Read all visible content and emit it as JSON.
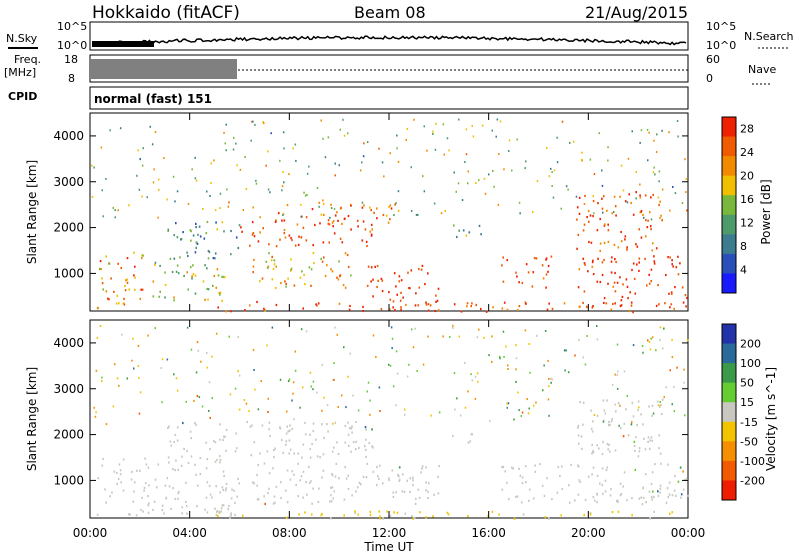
{
  "header": {
    "station": "Hokkaido (fitACF)",
    "beam": "Beam 08",
    "date": "21/Aug/2015"
  },
  "strip": {
    "nsky_label": "N.Sky",
    "nsearch_label": "N.Search",
    "freq_label": "Freq.",
    "freq_unit": "[MHz]",
    "nave_label": "Nave",
    "cpid_label": "CPID",
    "cpid_value": "normal (fast) 151",
    "noise_ticks_left": [
      "10^5",
      "10^0"
    ],
    "noise_ticks_right": [
      "10^5",
      "10^0"
    ],
    "freq_ticks": [
      "18",
      "8"
    ],
    "nave_ticks": [
      "60",
      "0"
    ]
  },
  "colors": {
    "power_scale": [
      "#1a1aff",
      "#2a4fb8",
      "#3d7b8e",
      "#4f9a6a",
      "#79b83c",
      "#f0c000",
      "#f28a00",
      "#f05a00",
      "#ee2200"
    ],
    "velocity_scale": [
      "#ee1c00",
      "#f25a00",
      "#f58f00",
      "#f2c400",
      "#c8c8c0",
      "#66cc33",
      "#3b9a4a",
      "#2a6a9a",
      "#2233aa"
    ],
    "ground_scatter": "#c8c8c0"
  },
  "chart_data": [
    {
      "type": "heatmap",
      "name": "power",
      "xlabel": "Time UT",
      "ylabel": "Slant Range [km]",
      "xlim": [
        0,
        24
      ],
      "ylim": [
        180,
        4500
      ],
      "x_ticks": [
        "00:00",
        "04:00",
        "08:00",
        "12:00",
        "16:00",
        "20:00",
        "00:00"
      ],
      "y_ticks": [
        1000,
        2000,
        3000,
        4000
      ],
      "colorbar_label": "Power [dB]",
      "colorbar_ticks": [
        4,
        8,
        12,
        16,
        20,
        24,
        28
      ],
      "clim": [
        0,
        30
      ],
      "regions": [
        {
          "t": [
            0.2,
            2.2
          ],
          "r": [
            250,
            1500
          ],
          "level": 22
        },
        {
          "t": [
            2.5,
            5.5
          ],
          "r": [
            400,
            1300
          ],
          "level": 16
        },
        {
          "t": [
            3.0,
            6.0
          ],
          "r": [
            1300,
            2200
          ],
          "level": 11
        },
        {
          "t": [
            6.0,
            11.5
          ],
          "r": [
            1600,
            2200
          ],
          "level": 27
        },
        {
          "t": [
            6.5,
            10.5
          ],
          "r": [
            700,
            1500
          ],
          "level": 20
        },
        {
          "t": [
            7.5,
            12.5
          ],
          "r": [
            2100,
            2600
          ],
          "level": 24
        },
        {
          "t": [
            11.0,
            14.0
          ],
          "r": [
            400,
            1200
          ],
          "level": 28
        },
        {
          "t": [
            14.5,
            16.0
          ],
          "r": [
            1800,
            2100
          ],
          "level": 12
        },
        {
          "t": [
            16.5,
            18.5
          ],
          "r": [
            700,
            1400
          ],
          "level": 26
        },
        {
          "t": [
            19.5,
            24.0
          ],
          "r": [
            300,
            1400
          ],
          "level": 29
        },
        {
          "t": [
            19.5,
            23.0
          ],
          "r": [
            1500,
            2800
          ],
          "level": 26
        },
        {
          "t": [
            5.0,
            24.0
          ],
          "r": [
            180,
            400
          ],
          "level": 27
        }
      ]
    },
    {
      "type": "heatmap",
      "name": "velocity",
      "xlabel": "Time UT",
      "ylabel": "Slant Range [km]",
      "xlim": [
        0,
        24
      ],
      "ylim": [
        180,
        4500
      ],
      "x_ticks": [
        "00:00",
        "04:00",
        "08:00",
        "12:00",
        "16:00",
        "20:00",
        "00:00"
      ],
      "y_ticks": [
        1000,
        2000,
        3000,
        4000
      ],
      "colorbar_label": "Velocity [m s^-1]",
      "colorbar_ticks": [
        200,
        100,
        50,
        15,
        -15,
        -50,
        -100,
        -200
      ],
      "clim": [
        -250,
        250
      ],
      "regions": [
        {
          "t": [
            0.2,
            6.0
          ],
          "r": [
            250,
            1500
          ],
          "level": 0
        },
        {
          "t": [
            3.0,
            11.5
          ],
          "r": [
            1500,
            2300
          ],
          "level": 0
        },
        {
          "t": [
            6.5,
            14.0
          ],
          "r": [
            500,
            1400
          ],
          "level": 0
        },
        {
          "t": [
            14.5,
            15.5
          ],
          "r": [
            1800,
            2100
          ],
          "level": 30
        },
        {
          "t": [
            16.5,
            24.0
          ],
          "r": [
            500,
            1400
          ],
          "level": 0
        },
        {
          "t": [
            19.5,
            23.0
          ],
          "r": [
            1500,
            2800
          ],
          "level": 0
        },
        {
          "t": [
            5.0,
            24.0
          ],
          "r": [
            180,
            350
          ],
          "level": -30
        }
      ]
    }
  ]
}
